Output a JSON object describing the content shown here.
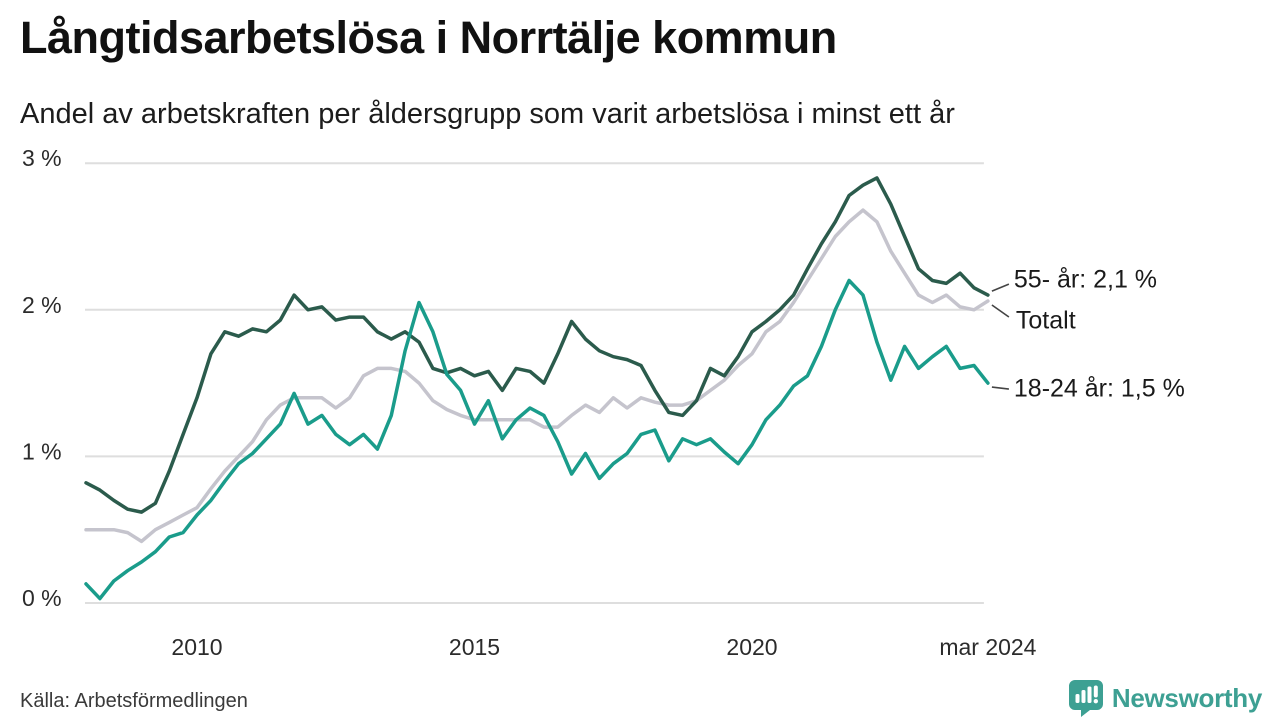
{
  "header": {
    "title": "Långtidsarbetslösa i Norrtälje kommun",
    "subtitle": "Andel av arbetskraften per åldersgrupp som varit arbetslösa i minst ett år"
  },
  "chart_data": {
    "type": "line",
    "title": "Långtidsarbetslösa i Norrtälje kommun",
    "subtitle": "Andel av arbetskraften per åldersgrupp som varit arbetslösa i minst ett år",
    "x_unit": "decimal_year_quarterly",
    "x_start": 2008.0,
    "x_step": 0.25,
    "x_end": 2024.25,
    "ylim": [
      0,
      3
    ],
    "grid": true,
    "legend_position": "end-of-line-labels",
    "yticks": [
      {
        "v": 3,
        "label": "3 %"
      },
      {
        "v": 2,
        "label": "2 %"
      },
      {
        "v": 1,
        "label": "1 %"
      },
      {
        "v": 0,
        "label": "0 %"
      }
    ],
    "xticks": [
      {
        "t": 2010,
        "label": "2010"
      },
      {
        "t": 2015,
        "label": "2015"
      },
      {
        "t": 2020,
        "label": "2020"
      },
      {
        "t": 2024.25,
        "label": "mar 2024"
      }
    ],
    "series": [
      {
        "name": "Totalt",
        "end_label": "Totalt",
        "end_value_pct": 2.06,
        "color": "#c5c4cd",
        "values": [
          0.5,
          0.5,
          0.5,
          0.48,
          0.42,
          0.5,
          0.55,
          0.6,
          0.65,
          0.78,
          0.9,
          1.0,
          1.1,
          1.25,
          1.35,
          1.4,
          1.4,
          1.4,
          1.33,
          1.4,
          1.55,
          1.6,
          1.6,
          1.58,
          1.5,
          1.38,
          1.32,
          1.28,
          1.25,
          1.25,
          1.25,
          1.25,
          1.25,
          1.2,
          1.2,
          1.28,
          1.35,
          1.3,
          1.4,
          1.33,
          1.4,
          1.37,
          1.35,
          1.35,
          1.38,
          1.45,
          1.52,
          1.62,
          1.7,
          1.85,
          1.92,
          2.05,
          2.2,
          2.35,
          2.5,
          2.6,
          2.68,
          2.6,
          2.4,
          2.25,
          2.1,
          2.05,
          2.1,
          2.02,
          2.0,
          2.06
        ]
      },
      {
        "name": "55- år",
        "end_label": "55- år: 2,1 %",
        "end_value_pct": 2.1,
        "color": "#2b5b4c",
        "values": [
          0.82,
          0.77,
          0.7,
          0.64,
          0.62,
          0.68,
          0.9,
          1.15,
          1.4,
          1.7,
          1.85,
          1.82,
          1.87,
          1.85,
          1.93,
          2.1,
          2.0,
          2.02,
          1.93,
          1.95,
          1.95,
          1.85,
          1.8,
          1.85,
          1.78,
          1.6,
          1.57,
          1.6,
          1.55,
          1.58,
          1.45,
          1.6,
          1.58,
          1.5,
          1.7,
          1.92,
          1.8,
          1.72,
          1.68,
          1.66,
          1.62,
          1.45,
          1.3,
          1.28,
          1.38,
          1.6,
          1.55,
          1.68,
          1.85,
          1.92,
          2.0,
          2.1,
          2.28,
          2.45,
          2.6,
          2.78,
          2.85,
          2.9,
          2.72,
          2.5,
          2.28,
          2.2,
          2.18,
          2.25,
          2.15,
          2.1
        ]
      },
      {
        "name": "18-24 år",
        "end_label": "18-24 år: 1,5 %",
        "end_value_pct": 1.5,
        "color": "#1a9c8b",
        "values": [
          0.13,
          0.03,
          0.15,
          0.22,
          0.28,
          0.35,
          0.45,
          0.48,
          0.6,
          0.7,
          0.83,
          0.95,
          1.02,
          1.12,
          1.22,
          1.43,
          1.22,
          1.28,
          1.15,
          1.08,
          1.15,
          1.05,
          1.28,
          1.72,
          2.05,
          1.85,
          1.56,
          1.45,
          1.22,
          1.38,
          1.12,
          1.25,
          1.33,
          1.28,
          1.1,
          0.88,
          1.02,
          0.85,
          0.95,
          1.02,
          1.15,
          1.18,
          0.97,
          1.12,
          1.08,
          1.12,
          1.03,
          0.95,
          1.08,
          1.25,
          1.35,
          1.48,
          1.55,
          1.75,
          2.0,
          2.2,
          2.1,
          1.78,
          1.52,
          1.75,
          1.6,
          1.68,
          1.75,
          1.6,
          1.62,
          1.5
        ]
      }
    ]
  },
  "footer": {
    "source": "Källa: Arbetsförmedlingen",
    "brand": "Newsworthy"
  },
  "colors": {
    "background": "#ffffff",
    "grid": "#dedede",
    "title_text": "#111111",
    "axis_text": "#2b2b2b",
    "end_label_text": "#1a1a1a",
    "source_text": "#3a3a3a",
    "brand_teal": "#3da093"
  }
}
